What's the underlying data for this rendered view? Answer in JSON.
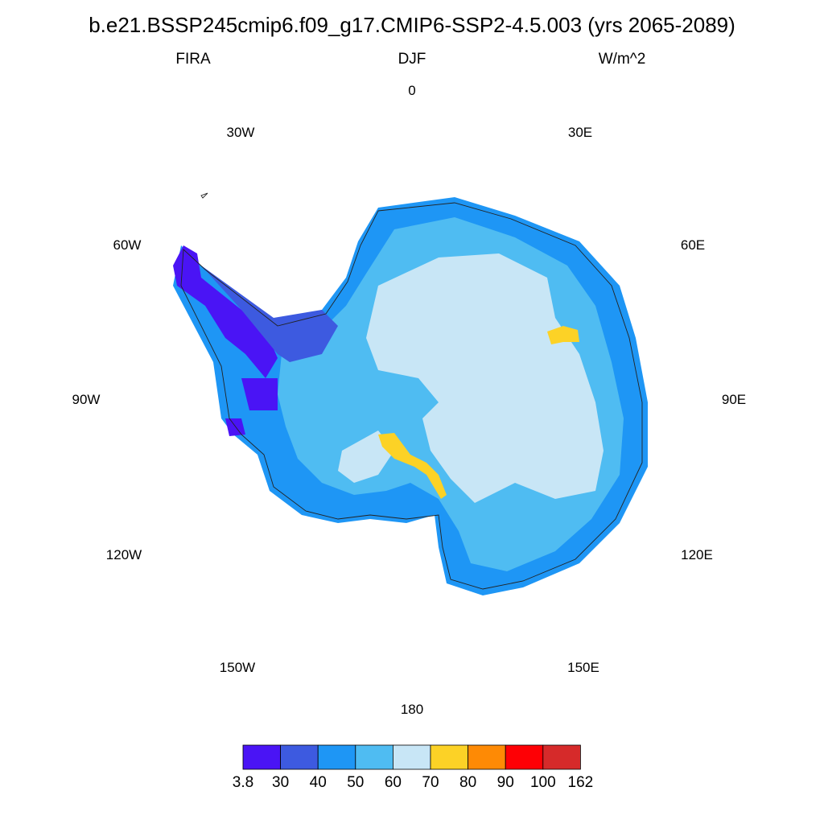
{
  "title": "b.e21.BSSP245cmip6.f09_g17.CMIP6-SSP2-4.5.003 (yrs 2065-2089)",
  "subtitles": {
    "left": "FIRA",
    "center": "DJF",
    "right": "W/m^2"
  },
  "longitude_labels": [
    "0",
    "30E",
    "60E",
    "90E",
    "120E",
    "150E",
    "180",
    "150W",
    "120W",
    "90W",
    "60W",
    "30W"
  ],
  "colorbar": {
    "colors": [
      "#4a14f5",
      "#3d5ae0",
      "#1e96f5",
      "#4fbcf2",
      "#c8e6f6",
      "#fcd226",
      "#fe8a05",
      "#fe0005",
      "#d62a2a"
    ],
    "labels": [
      "3.8",
      "30",
      "40",
      "50",
      "60",
      "70",
      "80",
      "90",
      "100",
      "162"
    ]
  },
  "map_colors": {
    "coast": "#222222",
    "lowest": "#4a14f5",
    "low": "#3d5ae0",
    "mid_low": "#1e96f5",
    "mid": "#4fbcf2",
    "plateau": "#c8e6f6",
    "high": "#fcd226"
  }
}
